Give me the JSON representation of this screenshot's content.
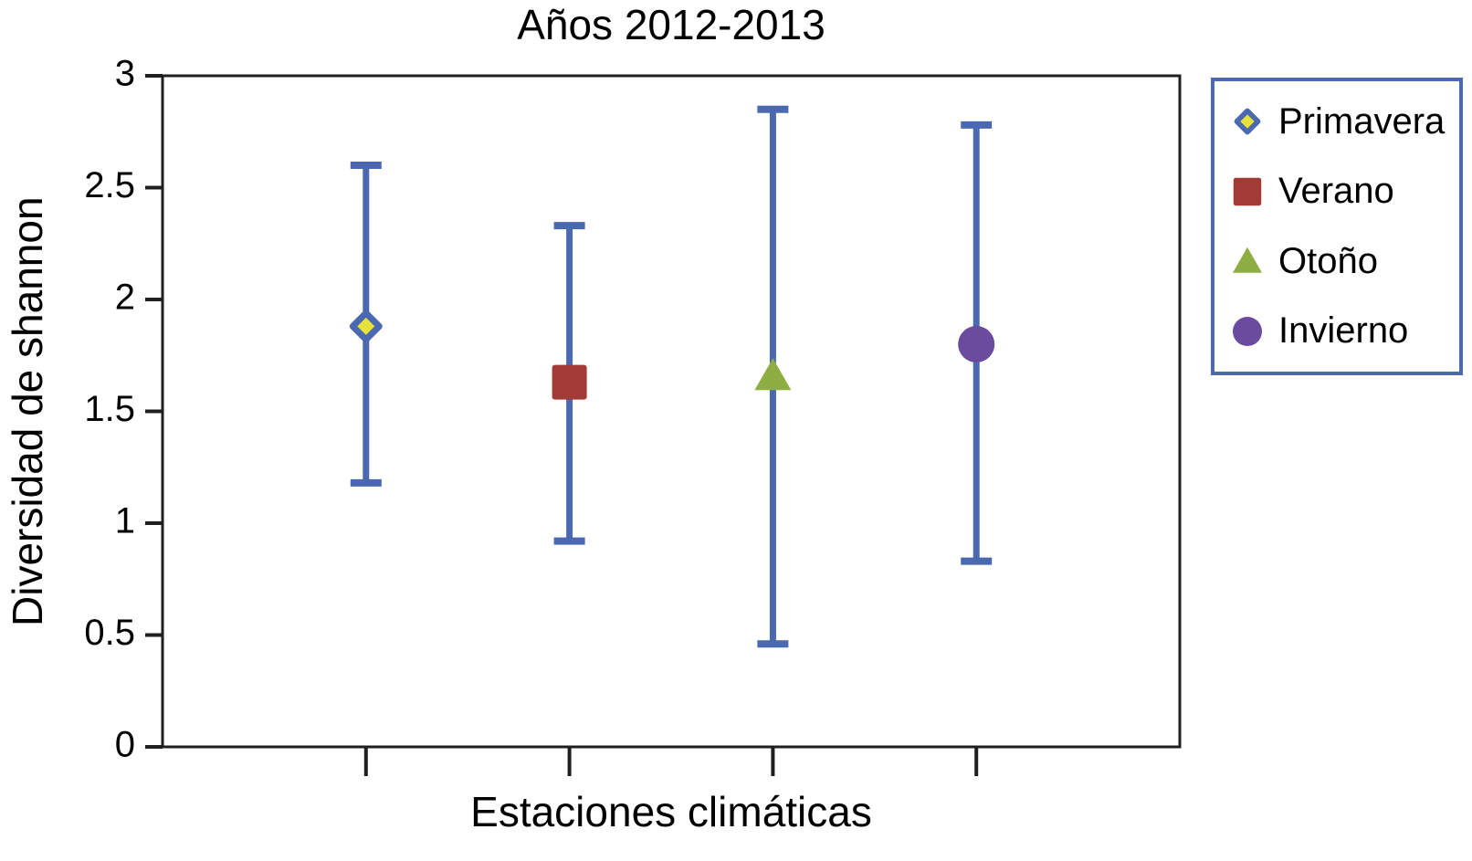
{
  "chart_data": {
    "type": "scatter",
    "subtype": "means-with-error-bars",
    "title": "Años 2012-2013",
    "xlabel": "Estaciones climáticas",
    "ylabel": "Diversidad de shannon",
    "ylim": [
      0,
      3
    ],
    "y_tick_values": [
      0,
      0.5,
      1,
      1.5,
      2,
      2.5,
      3
    ],
    "y_tick_labels": [
      "0",
      "0.5",
      "1",
      "1.5",
      "2",
      "2.5",
      "3"
    ],
    "grid": false,
    "legend_position": "right-outside",
    "colors": {
      "error_bar": "#4a69b0",
      "legend_border": "#4a69b0",
      "axis": "#1f1f1f",
      "text": "#000000",
      "background": "#ffffff"
    },
    "series": [
      {
        "name": "Primavera",
        "marker": "diamond",
        "fill": "#e7e23a",
        "stroke": "#4a69b0",
        "mean": 1.88,
        "upper": 2.6,
        "lower": 1.18
      },
      {
        "name": "Verano",
        "marker": "square",
        "fill": "#a23b36",
        "stroke": "none",
        "mean": 1.63,
        "upper": 2.33,
        "lower": 0.92
      },
      {
        "name": "Otoño",
        "marker": "triangle",
        "fill": "#8eae44",
        "stroke": "none",
        "mean": 1.66,
        "upper": 2.85,
        "lower": 0.46
      },
      {
        "name": "Invierno",
        "marker": "circle",
        "fill": "#6a4b9d",
        "stroke": "none",
        "mean": 1.8,
        "upper": 2.78,
        "lower": 0.83
      }
    ]
  }
}
